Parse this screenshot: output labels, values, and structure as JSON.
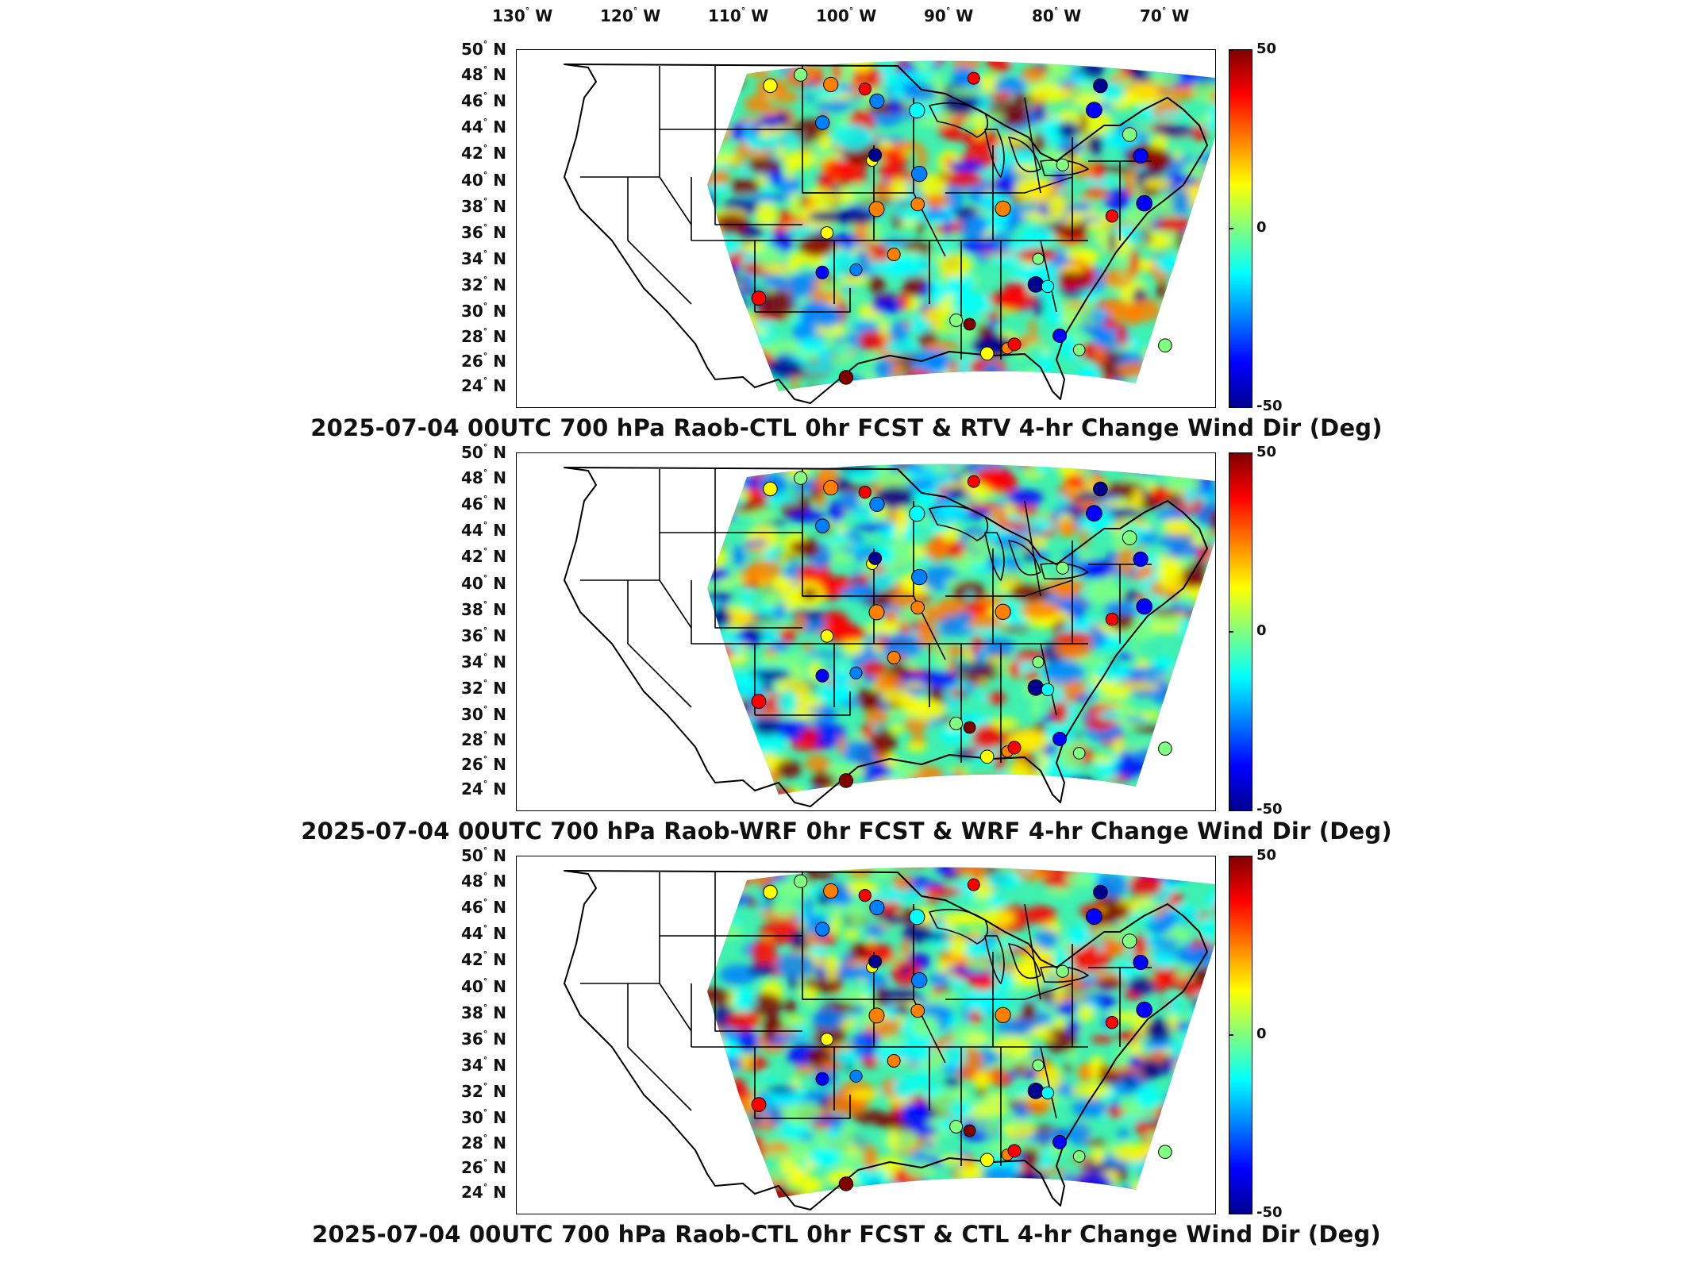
{
  "lon_labels": [
    {
      "deg": "130",
      "hemi": "W"
    },
    {
      "deg": "120",
      "hemi": "W"
    },
    {
      "deg": "110",
      "hemi": "W"
    },
    {
      "deg": "100",
      "hemi": "W"
    },
    {
      "deg": "90",
      "hemi": "W"
    },
    {
      "deg": "80",
      "hemi": "W"
    },
    {
      "deg": "70",
      "hemi": "W"
    }
  ],
  "lat_labels": [
    {
      "deg": "50",
      "hemi": "N"
    },
    {
      "deg": "48",
      "hemi": "N"
    },
    {
      "deg": "46",
      "hemi": "N"
    },
    {
      "deg": "44",
      "hemi": "N"
    },
    {
      "deg": "42",
      "hemi": "N"
    },
    {
      "deg": "40",
      "hemi": "N"
    },
    {
      "deg": "38",
      "hemi": "N"
    },
    {
      "deg": "36",
      "hemi": "N"
    },
    {
      "deg": "34",
      "hemi": "N"
    },
    {
      "deg": "32",
      "hemi": "N"
    },
    {
      "deg": "30",
      "hemi": "N"
    },
    {
      "deg": "28",
      "hemi": "N"
    },
    {
      "deg": "26",
      "hemi": "N"
    },
    {
      "deg": "24",
      "hemi": "N"
    }
  ],
  "colorbar": {
    "max_label": "50",
    "mid_label": "0",
    "min_label": "-50",
    "colors": [
      "#00008f",
      "#0000ff",
      "#0080ff",
      "#00ffff",
      "#80ff80",
      "#ffff00",
      "#ff8000",
      "#ff0000",
      "#800000"
    ]
  },
  "panels": [
    {
      "title": "2025-07-04 00UTC 700 hPa Raob-CTL 0hr FCST & RTV 4-hr Change Wind Dir (Deg)"
    },
    {
      "title": "2025-07-04 00UTC 700 hPa Raob-WRF 0hr FCST & WRF 4-hr Change Wind Dir (Deg)"
    },
    {
      "title": "2025-07-04 00UTC 700 hPa Raob-CTL 0hr FCST & CTL 4-hr Change Wind Dir (Deg)"
    }
  ]
}
